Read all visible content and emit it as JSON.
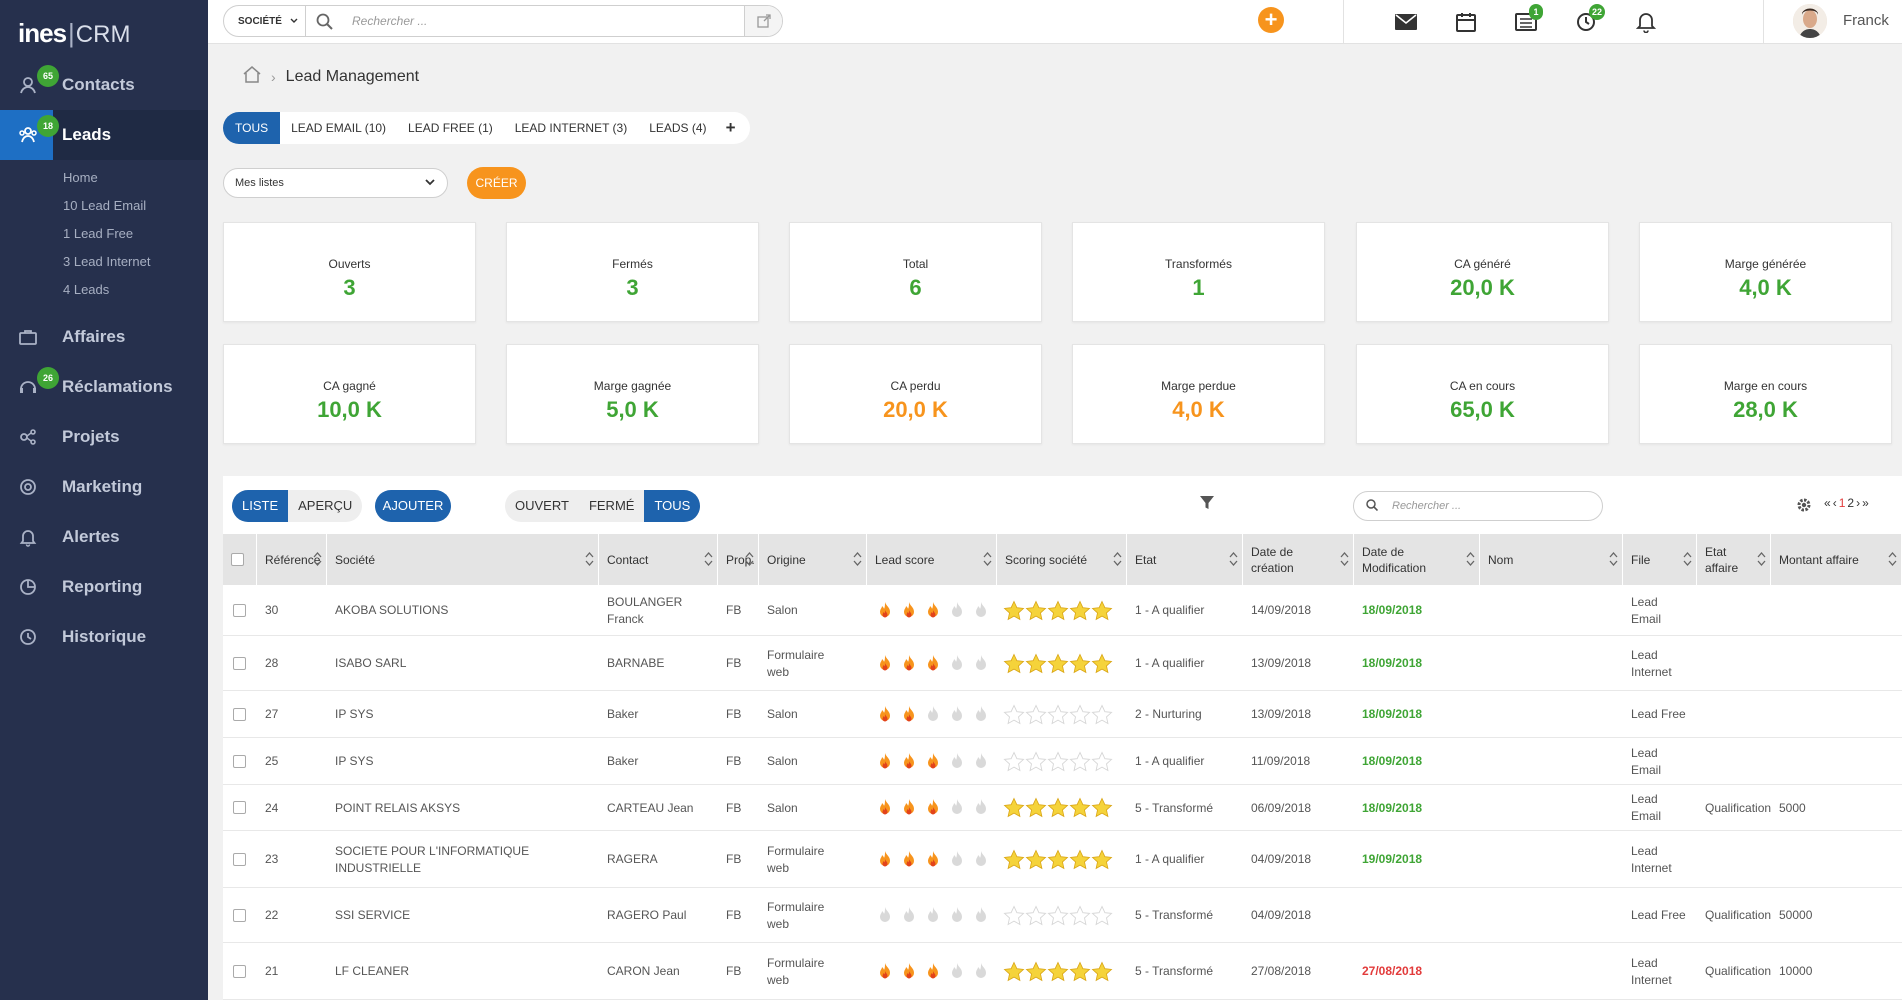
{
  "sidebar": {
    "logo": {
      "brand": "ines",
      "product": "CRM"
    },
    "items": [
      {
        "label": "Contacts",
        "badge": "65"
      },
      {
        "label": "Leads",
        "badge": "18"
      },
      {
        "label": "Affaires",
        "badge": ""
      },
      {
        "label": "Réclamations",
        "badge": "26"
      },
      {
        "label": "Projets",
        "badge": ""
      },
      {
        "label": "Marketing",
        "badge": ""
      },
      {
        "label": "Alertes",
        "badge": ""
      },
      {
        "label": "Reporting",
        "badge": ""
      },
      {
        "label": "Historique",
        "badge": ""
      }
    ],
    "sub_items": [
      "Home",
      "10 Lead Email",
      "1 Lead Free",
      "3 Lead Internet",
      "4 Leads"
    ]
  },
  "topbar": {
    "scope_select": "SOCIÉTÉ",
    "search_placeholder": "Rechercher ...",
    "tasks_badge": "1",
    "reminders_badge": "22",
    "user_name": "Franck"
  },
  "breadcrumb": {
    "current": "Lead Management"
  },
  "tabs": [
    "TOUS",
    "LEAD EMAIL (10)",
    "LEAD FREE (1)",
    "LEAD INTERNET (3)",
    "LEADS (4)",
    "+"
  ],
  "list_select": "Mes listes",
  "create_button": "CRÉER",
  "kpis": [
    {
      "label": "Ouverts",
      "value": "3",
      "color": "green"
    },
    {
      "label": "Fermés",
      "value": "3",
      "color": "green"
    },
    {
      "label": "Total",
      "value": "6",
      "color": "green"
    },
    {
      "label": "Transformés",
      "value": "1",
      "color": "green"
    },
    {
      "label": "CA généré",
      "value": "20,0 K",
      "color": "green"
    },
    {
      "label": "Marge générée",
      "value": "4,0 K",
      "color": "green"
    },
    {
      "label": "CA gagné",
      "value": "10,0 K",
      "color": "green"
    },
    {
      "label": "Marge gagnée",
      "value": "5,0 K",
      "color": "green"
    },
    {
      "label": "CA perdu",
      "value": "20,0 K",
      "color": "orange"
    },
    {
      "label": "Marge perdue",
      "value": "4,0 K",
      "color": "orange"
    },
    {
      "label": "CA en cours",
      "value": "65,0 K",
      "color": "green"
    },
    {
      "label": "Marge en cours",
      "value": "28,0 K",
      "color": "green"
    }
  ],
  "table_toolbar": {
    "view": [
      "LISTE",
      "APERÇU"
    ],
    "add": "AJOUTER",
    "status_filter": [
      "OUVERT",
      "FERMÉ",
      "TOUS"
    ],
    "search_placeholder": "Rechercher ...",
    "pager": {
      "first": "«",
      "prev": "‹",
      "page1": "1",
      "page2": "2",
      "next": "›",
      "last": "»"
    }
  },
  "columns": [
    "Référence",
    "Société",
    "Contact",
    "Prop.",
    "Origine",
    "Lead score",
    "Scoring société",
    "Etat",
    "Date de création",
    "Date de Modification",
    "Nom",
    "File",
    "Etat affaire",
    "Montant affaire"
  ],
  "rows": [
    {
      "ref": "30",
      "societe": "AKOBA SOLUTIONS",
      "contact": "BOULANGER Franck",
      "prop": "FB",
      "origine": "Salon",
      "lead_score": 3,
      "scoring": 5,
      "etat": "1 - A qualifier",
      "creation": "14/09/2018",
      "modification": "18/09/2018",
      "mod_color": "green",
      "nom": "",
      "file": "Lead Email",
      "etat_affaire": "",
      "montant": ""
    },
    {
      "ref": "28",
      "societe": "ISABO SARL",
      "contact": "BARNABE",
      "prop": "FB",
      "origine": "Formulaire web",
      "lead_score": 3,
      "scoring": 5,
      "etat": "1 - A qualifier",
      "creation": "13/09/2018",
      "modification": "18/09/2018",
      "mod_color": "green",
      "nom": "",
      "file": "Lead Internet",
      "etat_affaire": "",
      "montant": ""
    },
    {
      "ref": "27",
      "societe": "IP SYS",
      "contact": "Baker",
      "prop": "FB",
      "origine": "Salon",
      "lead_score": 2,
      "scoring": 0,
      "etat": "2 - Nurturing",
      "creation": "13/09/2018",
      "modification": "18/09/2018",
      "mod_color": "green",
      "nom": "",
      "file": "Lead Free",
      "etat_affaire": "",
      "montant": ""
    },
    {
      "ref": "25",
      "societe": "IP SYS",
      "contact": "Baker",
      "prop": "FB",
      "origine": "Salon",
      "lead_score": 3,
      "scoring": 0,
      "etat": "1 - A qualifier",
      "creation": "11/09/2018",
      "modification": "18/09/2018",
      "mod_color": "green",
      "nom": "",
      "file": "Lead Email",
      "etat_affaire": "",
      "montant": ""
    },
    {
      "ref": "24",
      "societe": "POINT RELAIS AKSYS",
      "contact": "CARTEAU Jean",
      "prop": "FB",
      "origine": "Salon",
      "lead_score": 3,
      "scoring": 5,
      "etat": "5 - Transformé",
      "creation": "06/09/2018",
      "modification": "18/09/2018",
      "mod_color": "green",
      "nom": "",
      "file": "Lead Email",
      "etat_affaire": "Qualification",
      "montant": "5000"
    },
    {
      "ref": "23",
      "societe": "SOCIETE POUR L'INFORMATIQUE INDUSTRIELLE",
      "contact": "RAGERA",
      "prop": "FB",
      "origine": "Formulaire web",
      "lead_score": 3,
      "scoring": 5,
      "etat": "1 - A qualifier",
      "creation": "04/09/2018",
      "modification": "19/09/2018",
      "mod_color": "green",
      "nom": "",
      "file": "Lead Internet",
      "etat_affaire": "",
      "montant": ""
    },
    {
      "ref": "22",
      "societe": "SSI SERVICE",
      "contact": "RAGERO Paul",
      "prop": "FB",
      "origine": "Formulaire web",
      "lead_score": 0,
      "scoring": 0,
      "etat": "5 - Transformé",
      "creation": "04/09/2018",
      "modification": "",
      "mod_color": "green",
      "nom": "",
      "file": "Lead Free",
      "etat_affaire": "Qualification",
      "montant": "50000"
    },
    {
      "ref": "21",
      "societe": "LF CLEANER",
      "contact": "CARON Jean",
      "prop": "FB",
      "origine": "Formulaire web",
      "lead_score": 3,
      "scoring": 5,
      "etat": "5 - Transformé",
      "creation": "27/08/2018",
      "modification": "27/08/2018",
      "mod_color": "red",
      "nom": "",
      "file": "Lead Internet",
      "etat_affaire": "Qualification",
      "montant": "10000"
    }
  ],
  "colors": {
    "sidebar": "#26304d",
    "primary": "#1e63ad",
    "accent": "#f7941d",
    "success": "#3fa535",
    "danger": "#e23b3b"
  }
}
